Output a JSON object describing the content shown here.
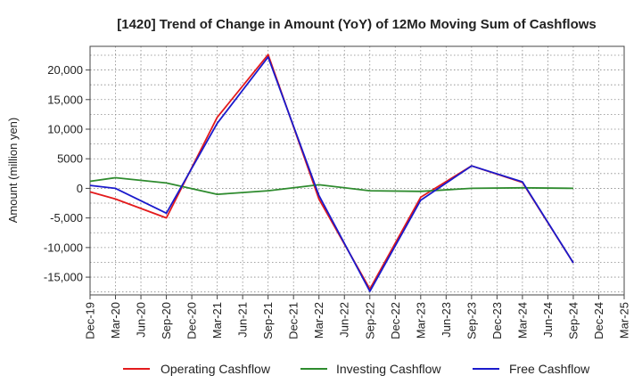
{
  "chart_data": {
    "type": "line",
    "title": "[1420]  Trend of Change in Amount (YoY) of 12Mo Moving Sum of Cashflows",
    "xlabel": "",
    "ylabel": "Amount (million yen)",
    "categories": [
      "Dec-19",
      "Mar-20",
      "Jun-20",
      "Sep-20",
      "Dec-20",
      "Mar-21",
      "Jun-21",
      "Sep-21",
      "Dec-21",
      "Mar-22",
      "Jun-22",
      "Sep-22",
      "Dec-22",
      "Mar-23",
      "Jun-23",
      "Sep-23",
      "Dec-23",
      "Mar-24",
      "Jun-24",
      "Sep-24",
      "Dec-24",
      "Mar-25"
    ],
    "ylim": [
      -18000,
      24000
    ],
    "yticks": [
      -15000,
      -10000,
      -5000,
      0,
      5000,
      10000,
      15000,
      20000
    ],
    "ytick_labels": [
      "-15,000",
      "-10,000",
      "-5,000",
      "0",
      "5000",
      "10,000",
      "15,000",
      "20,000"
    ],
    "grid": true,
    "legend_position": "bottom",
    "series": [
      {
        "name": "Operating Cashflow",
        "color": "#e31a1c",
        "values": [
          -600,
          -1800,
          null,
          -5000,
          null,
          12000,
          null,
          22600,
          null,
          -1800,
          null,
          -17000,
          null,
          -1500,
          null,
          3800,
          null,
          1000,
          null,
          -12600,
          null,
          null
        ]
      },
      {
        "name": "Investing Cashflow",
        "color": "#2e8b2e",
        "values": [
          1200,
          1800,
          null,
          900,
          null,
          -1000,
          null,
          -400,
          null,
          600,
          null,
          -400,
          null,
          -500,
          null,
          0,
          null,
          100,
          null,
          0,
          null,
          null
        ]
      },
      {
        "name": "Free Cashflow",
        "color": "#1a1acc",
        "values": [
          500,
          0,
          null,
          -4200,
          null,
          11000,
          null,
          22200,
          null,
          -1200,
          null,
          -17400,
          null,
          -2000,
          null,
          3800,
          null,
          1100,
          null,
          -12600,
          null,
          null
        ]
      }
    ]
  }
}
